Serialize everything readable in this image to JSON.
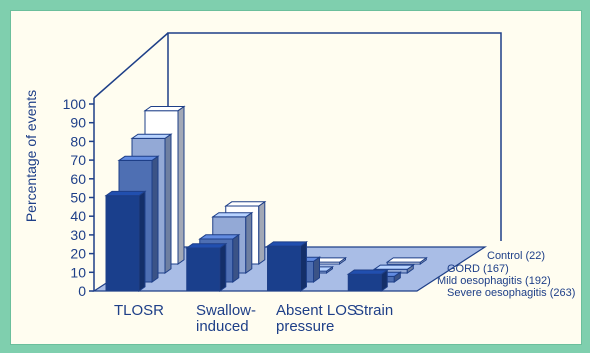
{
  "chart_data": {
    "type": "bar",
    "title": "",
    "xlabel": "",
    "ylabel": "Percentage of events",
    "ylim": [
      0,
      100
    ],
    "yticks": [
      0,
      10,
      20,
      30,
      40,
      50,
      60,
      70,
      80,
      90,
      100
    ],
    "categories": [
      "TLOSR",
      "Swallow-induced",
      "Absent LOS pressure",
      "Strain"
    ],
    "category_label_lines": [
      [
        "TLOSR"
      ],
      [
        "Swallow-",
        "induced"
      ],
      [
        "Absent LOS",
        "pressure"
      ],
      [
        "Strain"
      ]
    ],
    "series": [
      {
        "name": "Severe oesophagitis (263)",
        "values": [
          51,
          23,
          24,
          9
        ],
        "color": "#1a3f8c"
      },
      {
        "name": "Mild oesophagitis (192)",
        "values": [
          65,
          23,
          11,
          3
        ],
        "color": "#4e6fb3"
      },
      {
        "name": "GORD (167)",
        "values": [
          72,
          30,
          1,
          2
        ],
        "color": "#93a9d6"
      },
      {
        "name": "Control (22)",
        "values": [
          82,
          31,
          1,
          1
        ],
        "color": "#ffffff"
      }
    ],
    "legend_position": "right, aligned with depth rows",
    "grid": false
  }
}
